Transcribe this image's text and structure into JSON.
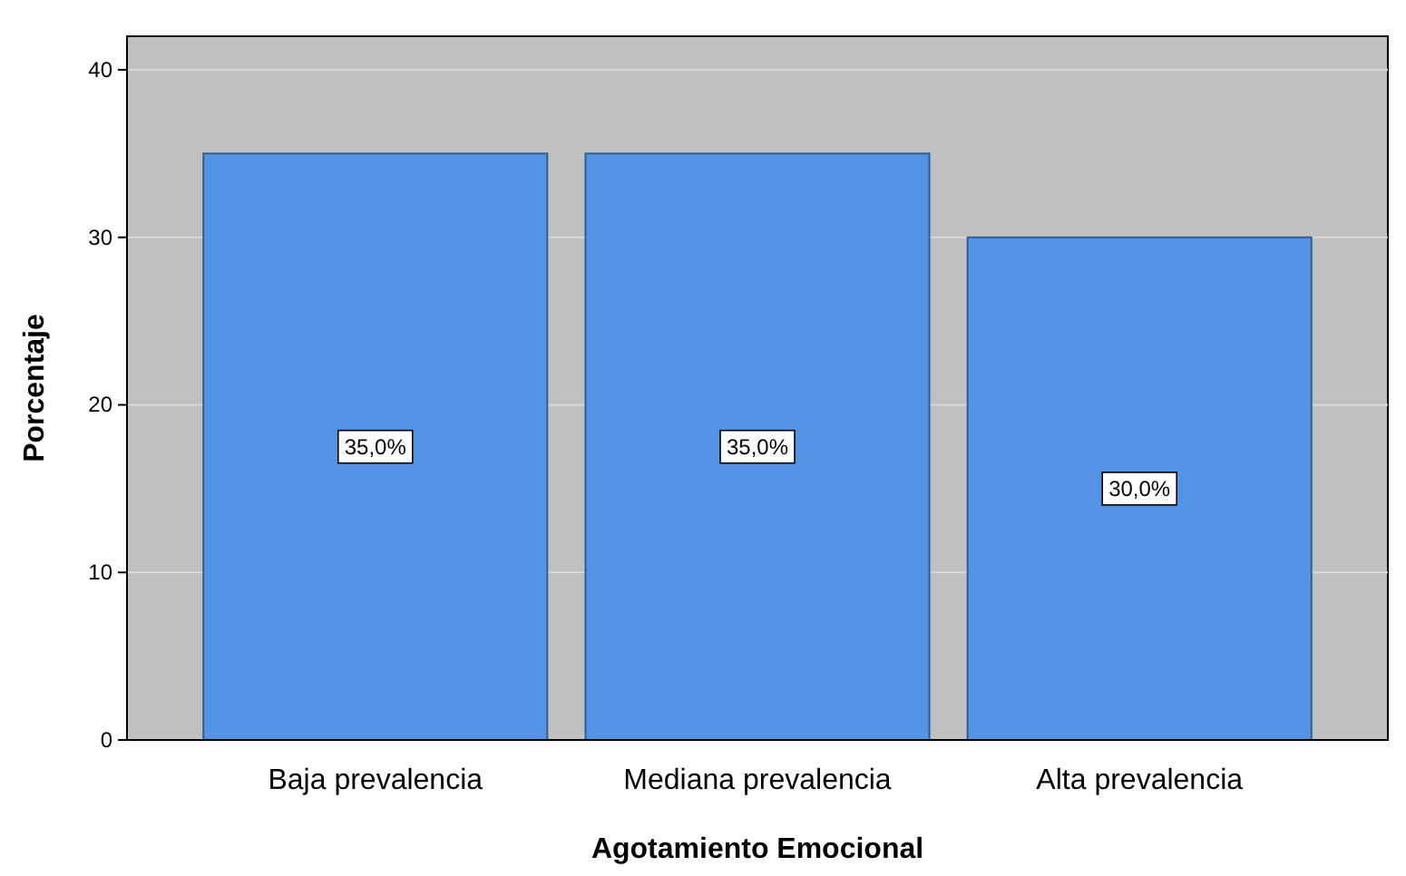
{
  "chart_data": {
    "type": "bar",
    "xlabel": "Agotamiento Emocional",
    "ylabel": "Porcentaje",
    "categories": [
      "Baja prevalencia",
      "Mediana prevalencia",
      "Alta prevalencia"
    ],
    "values": [
      35,
      35,
      30
    ],
    "color": "#5594e4",
    "value_labels": [
      "35,0%",
      "35,0%",
      "30,0%"
    ],
    "ylim": [
      0,
      42
    ],
    "yticks": [
      0,
      10,
      20,
      30,
      40
    ],
    "grid": "y"
  }
}
